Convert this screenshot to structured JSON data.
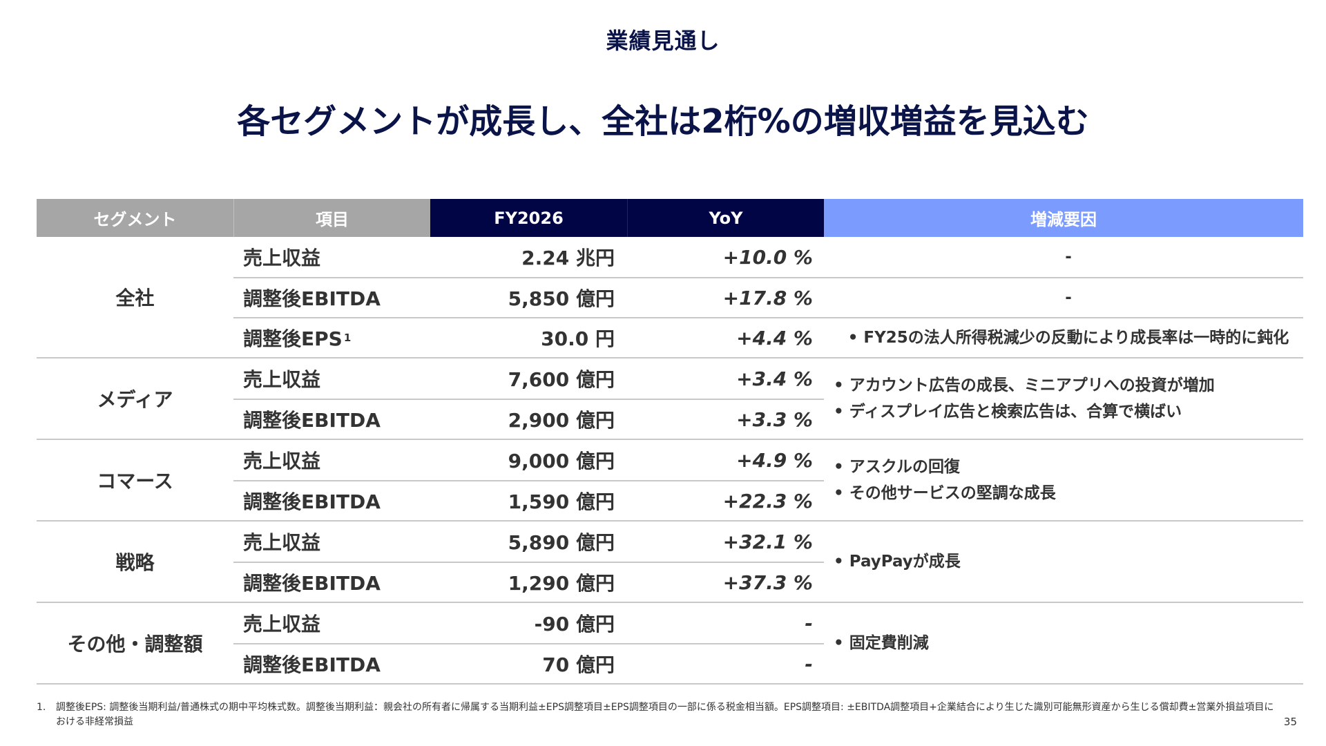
{
  "header": {
    "section_label": "業績見通し",
    "headline": "各セグメントが成長し、全社は2桁%の増収増益を見込む"
  },
  "table": {
    "columns": {
      "segment": "セグメント",
      "item": "項目",
      "value": "FY2026",
      "yoy": "YoY",
      "notes": "増減要因"
    },
    "groups": [
      {
        "segment": "全社",
        "rows": [
          {
            "item": "売上収益",
            "value": "2.24 兆円",
            "yoy": "+10.0 %",
            "note": "-"
          },
          {
            "item": "調整後EBITDA",
            "value": "5,850 億円",
            "yoy": "+17.8 %",
            "note": "-"
          },
          {
            "item": "調整後EPS",
            "sup": "1",
            "value": "30.0 円",
            "yoy": "+4.4 %",
            "note": "• FY25の法人所得税減少の反動により成長率は一時的に鈍化"
          }
        ]
      },
      {
        "segment": "メディア",
        "rows": [
          {
            "item": "売上収益",
            "value": "7,600 億円",
            "yoy": "+3.4 %"
          },
          {
            "item": "調整後EBITDA",
            "value": "2,900 億円",
            "yoy": "+3.3 %"
          }
        ],
        "notes": [
          "• アカウント広告の成長、ミニアプリへの投資が増加",
          "• ディスプレイ広告と検索広告は、合算で横ばい"
        ]
      },
      {
        "segment": "コマース",
        "rows": [
          {
            "item": "売上収益",
            "value": "9,000 億円",
            "yoy": "+4.9 %"
          },
          {
            "item": "調整後EBITDA",
            "value": "1,590 億円",
            "yoy": "+22.3 %"
          }
        ],
        "notes": [
          "• アスクルの回復",
          "• その他サービスの堅調な成長"
        ]
      },
      {
        "segment": "戦略",
        "rows": [
          {
            "item": "売上収益",
            "value": "5,890 億円",
            "yoy": "+32.1 %"
          },
          {
            "item": "調整後EBITDA",
            "value": "1,290 億円",
            "yoy": "+37.3 %"
          }
        ],
        "notes": [
          "• PayPayが成長"
        ]
      },
      {
        "segment": "その他・調整額",
        "rows": [
          {
            "item": "売上収益",
            "value": "-90 億円",
            "yoy": "-"
          },
          {
            "item": "調整後EBITDA",
            "value": "70 億円",
            "yoy": "-"
          }
        ],
        "notes": [
          "• 固定費削減"
        ]
      }
    ]
  },
  "footnote": {
    "number": "1.",
    "text": "調整後EPS: 調整後当期利益/普通株式の期中平均株式数。調整後当期利益：親会社の所有者に帰属する当期利益±EPS調整項目±EPS調整項目の一部に係る税金相当額。EPS調整項目: ±EBITDA調整項目+企業結合により生じた識別可能無形資産から生じる償却費±営業外損益項目における非経常損益"
  },
  "page_number": "35"
}
